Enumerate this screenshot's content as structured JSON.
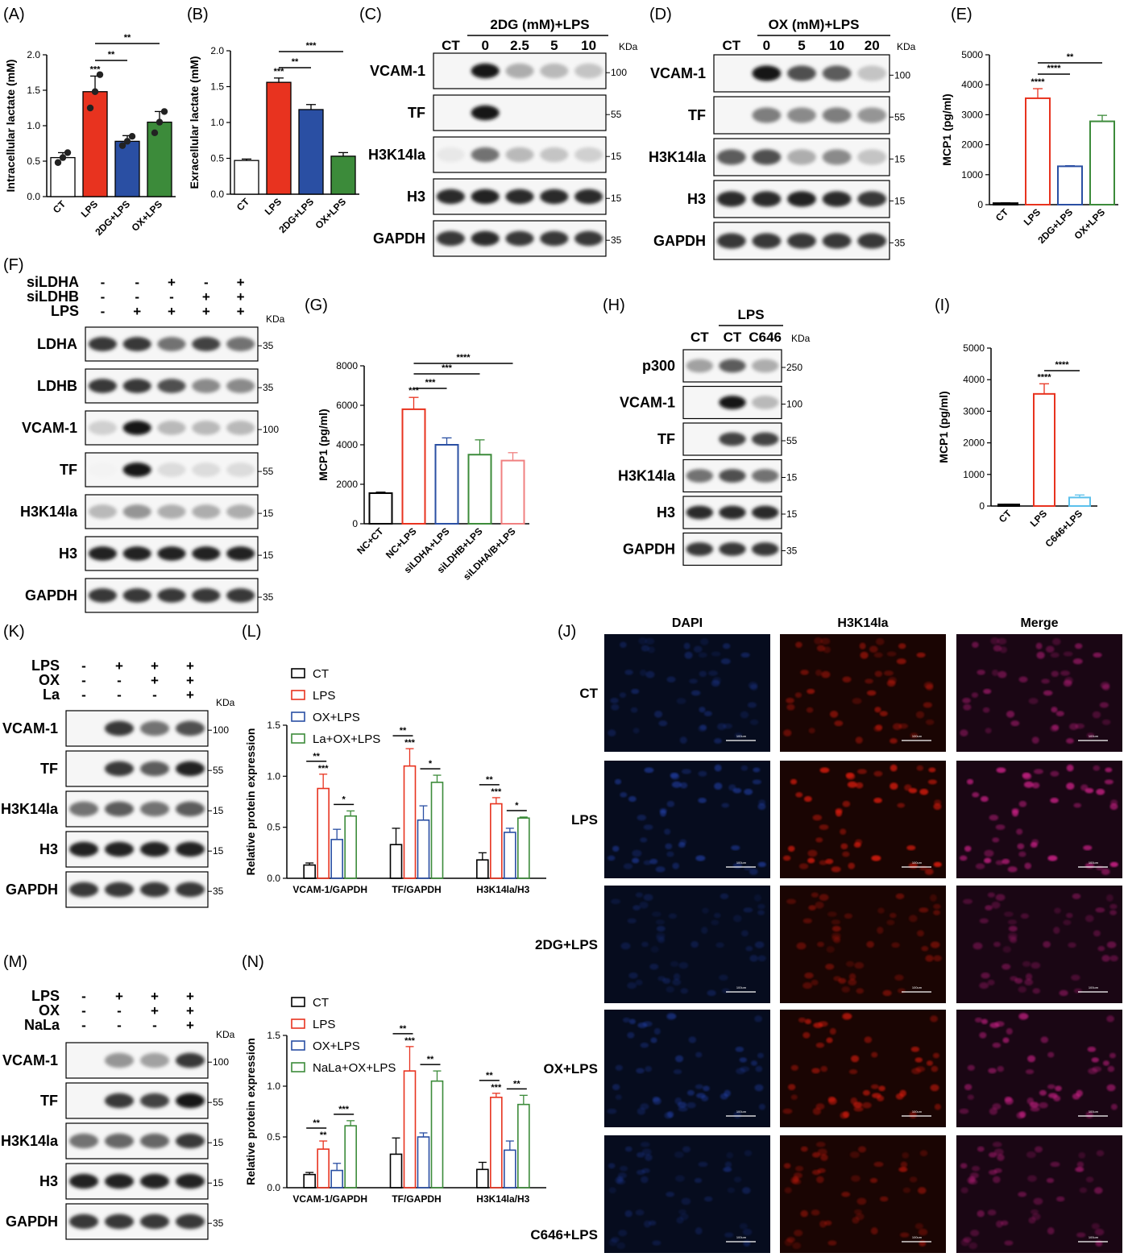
{
  "panels": [
    "(A)",
    "(B)",
    "(C)",
    "(D)",
    "(E)",
    "(F)",
    "(G)",
    "(H)",
    "(I)",
    "(J)",
    "(K)",
    "(L)",
    "(M)",
    "(N)"
  ],
  "common": {
    "kda": "KDa"
  },
  "chart_data": [
    {
      "id": "A",
      "type": "bar",
      "ylabel": "Intracellular lactate (mM)",
      "categories": [
        "CT",
        "LPS",
        "2DG+LPS",
        "OX+LPS"
      ],
      "values": [
        0.55,
        1.48,
        0.78,
        1.05
      ],
      "errors": [
        0.07,
        0.22,
        0.08,
        0.15
      ],
      "points": [
        [
          0.48,
          0.55,
          0.62
        ],
        [
          1.25,
          1.48,
          1.72
        ],
        [
          0.72,
          0.78,
          0.85
        ],
        [
          0.9,
          1.05,
          1.2
        ]
      ],
      "ylim": [
        0,
        2.0
      ],
      "yticks": [
        "0.0",
        "0.5",
        "1.0",
        "1.5",
        "2.0"
      ],
      "colors": [
        "#ffffff",
        "#e8331f",
        "#2a4fa3",
        "#3c8b3a"
      ],
      "significance": [
        {
          "label": "***",
          "over": 1
        },
        {
          "label": "**",
          "from": 1,
          "to": 2
        },
        {
          "label": "**",
          "from": 1,
          "to": 3
        }
      ]
    },
    {
      "id": "B",
      "type": "bar",
      "ylabel": "Exracellular lactate (mM)",
      "categories": [
        "CT",
        "LPS",
        "2DG+LPS",
        "OX+LPS"
      ],
      "values": [
        0.47,
        1.56,
        1.18,
        0.53
      ],
      "errors": [
        0.02,
        0.06,
        0.07,
        0.05
      ],
      "ylim": [
        0,
        2.0
      ],
      "yticks": [
        "0.0",
        "0.5",
        "1.0",
        "1.5",
        "2.0"
      ],
      "colors": [
        "#ffffff",
        "#e8331f",
        "#2a4fa3",
        "#3c8b3a"
      ],
      "significance": [
        {
          "label": "***",
          "over": 1
        },
        {
          "label": "**",
          "from": 1,
          "to": 2
        },
        {
          "label": "***",
          "from": 1,
          "to": 3
        }
      ]
    },
    {
      "id": "E",
      "type": "bar",
      "ylabel": "MCP1 (pg/ml)",
      "categories": [
        "CT",
        "LPS",
        "2DG+LPS",
        "OX+LPS"
      ],
      "values": [
        50,
        3550,
        1280,
        2780
      ],
      "errors": [
        10,
        320,
        20,
        200
      ],
      "ylim": [
        0,
        5000
      ],
      "yticks": [
        "0",
        "1000",
        "2000",
        "3000",
        "4000",
        "5000"
      ],
      "colors": [
        "#000000",
        "#e8331f",
        "#2a4fa3",
        "#3c8b3a"
      ],
      "hollow": true,
      "significance": [
        {
          "label": "****",
          "over": 1
        },
        {
          "label": "****",
          "from": 1,
          "to": 2
        },
        {
          "label": "**",
          "from": 1,
          "to": 3
        }
      ]
    },
    {
      "id": "G",
      "type": "bar",
      "ylabel": "MCP1 (pg/ml)",
      "categories": [
        "NC+CT",
        "NC+LPS",
        "siLDHA+LPS",
        "siLDHB+LPS",
        "siLDHA/B+LPS"
      ],
      "values": [
        1550,
        5800,
        4000,
        3500,
        3200
      ],
      "errors": [
        50,
        600,
        350,
        750,
        400
      ],
      "ylim": [
        0,
        8000
      ],
      "yticks": [
        "0",
        "2000",
        "4000",
        "6000",
        "8000"
      ],
      "colors": [
        "#000000",
        "#e8331f",
        "#2a4fa3",
        "#3c8b3a",
        "#f08080"
      ],
      "hollow": true,
      "significance": [
        {
          "label": "***",
          "over": 1
        },
        {
          "label": "***",
          "from": 1,
          "to": 2
        },
        {
          "label": "***",
          "from": 1,
          "to": 3
        },
        {
          "label": "****",
          "from": 1,
          "to": 4
        }
      ]
    },
    {
      "id": "I",
      "type": "bar",
      "ylabel": "MCP1 (pg/ml)",
      "categories": [
        "CT",
        "LPS",
        "C646+LPS"
      ],
      "values": [
        50,
        3550,
        270
      ],
      "errors": [
        10,
        320,
        80
      ],
      "ylim": [
        0,
        5000
      ],
      "yticks": [
        "0",
        "1000",
        "2000",
        "3000",
        "4000",
        "5000"
      ],
      "colors": [
        "#000000",
        "#e8331f",
        "#5bc0eb"
      ],
      "hollow": true,
      "significance": [
        {
          "label": "****",
          "over": 1
        },
        {
          "label": "****",
          "from": 1,
          "to": 2
        }
      ]
    },
    {
      "id": "L",
      "type": "bar",
      "ylabel": "Relative protein expression",
      "categories": [
        "VCAM-1/GAPDH",
        "TF/GAPDH",
        "H3K14la/H3"
      ],
      "series": [
        {
          "name": "CT",
          "values": [
            0.13,
            0.33,
            0.18
          ],
          "errors": [
            0.02,
            0.16,
            0.07
          ],
          "color": "#000000"
        },
        {
          "name": "LPS",
          "values": [
            0.88,
            1.1,
            0.73
          ],
          "errors": [
            0.14,
            0.17,
            0.06
          ],
          "color": "#e8331f"
        },
        {
          "name": "OX+LPS",
          "values": [
            0.38,
            0.57,
            0.45
          ],
          "errors": [
            0.1,
            0.14,
            0.04
          ],
          "color": "#2a4fa3"
        },
        {
          "name": "La+OX+LPS",
          "values": [
            0.61,
            0.94,
            0.59
          ],
          "errors": [
            0.05,
            0.07,
            0.01
          ],
          "color": "#3c8b3a"
        }
      ],
      "ylim": [
        0,
        1.5
      ],
      "yticks": [
        "0.0",
        "0.5",
        "1.0",
        "1.5"
      ],
      "significance": [
        {
          "group": 0,
          "label": "***",
          "over": 1
        },
        {
          "group": 0,
          "label": "**",
          "from": 0,
          "to": 1
        },
        {
          "group": 0,
          "label": "*",
          "from": 2,
          "to": 3
        },
        {
          "group": 1,
          "label": "***",
          "over": 1
        },
        {
          "group": 1,
          "label": "**",
          "from": 0,
          "to": 1
        },
        {
          "group": 1,
          "label": "*",
          "from": 2,
          "to": 3
        },
        {
          "group": 2,
          "label": "***",
          "over": 1
        },
        {
          "group": 2,
          "label": "**",
          "from": 0,
          "to": 1
        },
        {
          "group": 2,
          "label": "*",
          "from": 2,
          "to": 3
        }
      ]
    },
    {
      "id": "N",
      "type": "bar",
      "ylabel": "Relative protein expression",
      "categories": [
        "VCAM-1/GAPDH",
        "TF/GAPDH",
        "H3K14la/H3"
      ],
      "series": [
        {
          "name": "CT",
          "values": [
            0.13,
            0.33,
            0.18
          ],
          "errors": [
            0.02,
            0.16,
            0.07
          ],
          "color": "#000000"
        },
        {
          "name": "LPS",
          "values": [
            0.38,
            1.15,
            0.89
          ],
          "errors": [
            0.08,
            0.24,
            0.04
          ],
          "color": "#e8331f"
        },
        {
          "name": "OX+LPS",
          "values": [
            0.17,
            0.5,
            0.37
          ],
          "errors": [
            0.07,
            0.04,
            0.09
          ],
          "color": "#2a4fa3"
        },
        {
          "name": "NaLa+OX+LPS",
          "values": [
            0.61,
            1.05,
            0.82
          ],
          "errors": [
            0.05,
            0.1,
            0.09
          ],
          "color": "#3c8b3a"
        }
      ],
      "ylim": [
        0,
        1.5
      ],
      "yticks": [
        "0.0",
        "0.5",
        "1.0",
        "1.5"
      ],
      "significance": [
        {
          "group": 0,
          "label": "**",
          "over": 1
        },
        {
          "group": 0,
          "label": "**",
          "from": 0,
          "to": 1
        },
        {
          "group": 0,
          "label": "***",
          "from": 2,
          "to": 3
        },
        {
          "group": 1,
          "label": "***",
          "over": 1
        },
        {
          "group": 1,
          "label": "**",
          "from": 0,
          "to": 1
        },
        {
          "group": 1,
          "label": "**",
          "from": 2,
          "to": 3
        },
        {
          "group": 2,
          "label": "***",
          "over": 1
        },
        {
          "group": 2,
          "label": "**",
          "from": 0,
          "to": 1
        },
        {
          "group": 2,
          "label": "**",
          "from": 2,
          "to": 3
        }
      ]
    }
  ],
  "blots": {
    "C": {
      "header": "2DG (mM)+LPS",
      "lanes": [
        "CT",
        "0",
        "2.5",
        "5",
        "10"
      ],
      "rows": [
        {
          "label": "VCAM-1",
          "marker": "100",
          "intensity": [
            0,
            1,
            0.35,
            0.3,
            0.25
          ]
        },
        {
          "label": "TF",
          "marker": "55",
          "intensity": [
            0,
            1,
            0,
            0,
            0
          ]
        },
        {
          "label": "H3K14la",
          "marker": "15",
          "intensity": [
            0.1,
            0.6,
            0.3,
            0.25,
            0.2
          ]
        },
        {
          "label": "H3",
          "marker": "15",
          "intensity": [
            0.9,
            0.95,
            0.9,
            0.9,
            0.9
          ]
        },
        {
          "label": "GAPDH",
          "marker": "35",
          "intensity": [
            0.85,
            0.9,
            0.85,
            0.85,
            0.85
          ]
        }
      ]
    },
    "D": {
      "header": "OX (mM)+LPS",
      "lanes": [
        "CT",
        "0",
        "5",
        "10",
        "20"
      ],
      "rows": [
        {
          "label": "VCAM-1",
          "marker": "100",
          "intensity": [
            0,
            1,
            0.75,
            0.7,
            0.25
          ]
        },
        {
          "label": "TF",
          "marker": "55",
          "intensity": [
            0,
            0.55,
            0.5,
            0.55,
            0.45
          ]
        },
        {
          "label": "H3K14la",
          "marker": "15",
          "intensity": [
            0.7,
            0.75,
            0.35,
            0.5,
            0.25
          ]
        },
        {
          "label": "H3",
          "marker": "15",
          "intensity": [
            0.9,
            0.9,
            0.95,
            0.9,
            0.85
          ]
        },
        {
          "label": "GAPDH",
          "marker": "35",
          "intensity": [
            0.85,
            0.85,
            0.85,
            0.85,
            0.85
          ]
        }
      ]
    },
    "F": {
      "conditions": [
        {
          "label": "siLDHA",
          "signs": [
            "-",
            "-",
            "+",
            "-",
            "+"
          ]
        },
        {
          "label": "siLDHB",
          "signs": [
            "-",
            "-",
            "-",
            "+",
            "+"
          ]
        },
        {
          "label": "LPS",
          "signs": [
            "-",
            "+",
            "+",
            "+",
            "+"
          ]
        }
      ],
      "rows": [
        {
          "label": "LDHA",
          "marker": "35",
          "intensity": [
            0.85,
            0.85,
            0.6,
            0.8,
            0.6
          ]
        },
        {
          "label": "LDHB",
          "marker": "35",
          "intensity": [
            0.85,
            0.85,
            0.75,
            0.5,
            0.5
          ]
        },
        {
          "label": "VCAM-1",
          "marker": "100",
          "intensity": [
            0.2,
            1,
            0.3,
            0.3,
            0.3
          ]
        },
        {
          "label": "TF",
          "marker": "55",
          "intensity": [
            0.05,
            1,
            0.15,
            0.15,
            0.15
          ]
        },
        {
          "label": "H3K14la",
          "marker": "15",
          "intensity": [
            0.3,
            0.45,
            0.35,
            0.35,
            0.35
          ]
        },
        {
          "label": "H3",
          "marker": "15",
          "intensity": [
            0.95,
            0.95,
            0.95,
            0.95,
            0.95
          ]
        },
        {
          "label": "GAPDH",
          "marker": "35",
          "intensity": [
            0.85,
            0.85,
            0.85,
            0.85,
            0.85
          ]
        }
      ]
    },
    "H": {
      "header": "LPS",
      "lanes": [
        "CT",
        "CT",
        "C646"
      ],
      "rows": [
        {
          "label": "p300",
          "marker": "250",
          "intensity": [
            0.4,
            0.7,
            0.35
          ]
        },
        {
          "label": "VCAM-1",
          "marker": "100",
          "intensity": [
            0,
            1,
            0.3
          ]
        },
        {
          "label": "TF",
          "marker": "55",
          "intensity": [
            0,
            0.8,
            0.8
          ]
        },
        {
          "label": "H3K14la",
          "marker": "15",
          "intensity": [
            0.6,
            0.75,
            0.6
          ]
        },
        {
          "label": "H3",
          "marker": "15",
          "intensity": [
            0.9,
            0.9,
            0.9
          ]
        },
        {
          "label": "GAPDH",
          "marker": "35",
          "intensity": [
            0.85,
            0.85,
            0.85
          ]
        }
      ]
    },
    "K": {
      "conditions": [
        {
          "label": "LPS",
          "signs": [
            "-",
            "+",
            "+",
            "+"
          ]
        },
        {
          "label": "OX",
          "signs": [
            "-",
            "-",
            "+",
            "+"
          ]
        },
        {
          "label": "La",
          "signs": [
            "-",
            "-",
            "-",
            "+"
          ]
        }
      ],
      "rows": [
        {
          "label": "VCAM-1",
          "marker": "100",
          "intensity": [
            0,
            0.85,
            0.6,
            0.75
          ]
        },
        {
          "label": "TF",
          "marker": "55",
          "intensity": [
            0,
            0.85,
            0.7,
            0.95
          ]
        },
        {
          "label": "H3K14la",
          "marker": "15",
          "intensity": [
            0.6,
            0.7,
            0.6,
            0.7
          ]
        },
        {
          "label": "H3",
          "marker": "15",
          "intensity": [
            0.95,
            0.95,
            0.95,
            0.95
          ]
        },
        {
          "label": "GAPDH",
          "marker": "35",
          "intensity": [
            0.85,
            0.85,
            0.85,
            0.85
          ]
        }
      ]
    },
    "M": {
      "conditions": [
        {
          "label": "LPS",
          "signs": [
            "-",
            "+",
            "+",
            "+"
          ]
        },
        {
          "label": "OX",
          "signs": [
            "-",
            "-",
            "+",
            "+"
          ]
        },
        {
          "label": "NaLa",
          "signs": [
            "-",
            "-",
            "-",
            "+"
          ]
        }
      ],
      "rows": [
        {
          "label": "VCAM-1",
          "marker": "100",
          "intensity": [
            0,
            0.45,
            0.4,
            0.85
          ]
        },
        {
          "label": "TF",
          "marker": "55",
          "intensity": [
            0,
            0.85,
            0.8,
            1
          ]
        },
        {
          "label": "H3K14la",
          "marker": "15",
          "intensity": [
            0.6,
            0.65,
            0.65,
            0.85
          ]
        },
        {
          "label": "H3",
          "marker": "15",
          "intensity": [
            0.95,
            0.95,
            0.95,
            0.95
          ]
        },
        {
          "label": "GAPDH",
          "marker": "35",
          "intensity": [
            0.85,
            0.85,
            0.85,
            0.85
          ]
        }
      ]
    }
  },
  "if_panel": {
    "columns": [
      "DAPI",
      "H3K14la",
      "Merge"
    ],
    "rows": [
      "CT",
      "LPS",
      "2DG+LPS",
      "OX+LPS",
      "C646+LPS"
    ],
    "scale_label": "100um",
    "channel_colors": [
      "#2a4fd0",
      "#e01a10",
      "#d0208a"
    ],
    "brightness": [
      0.6,
      0.95,
      0.45,
      0.7,
      0.5
    ]
  }
}
